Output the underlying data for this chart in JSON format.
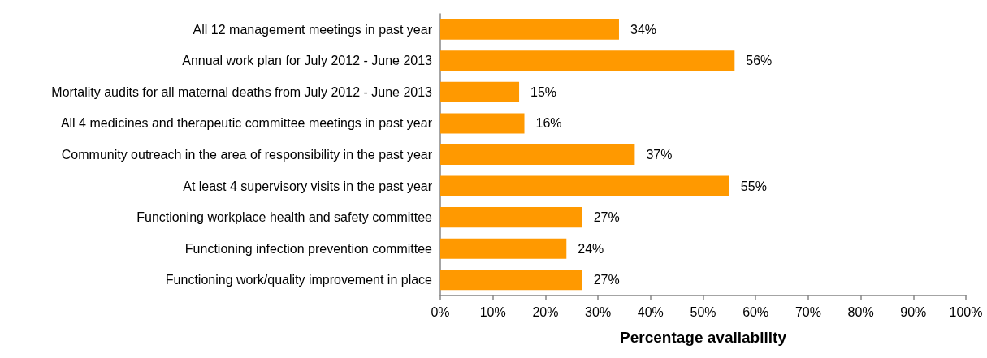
{
  "chart_data": {
    "type": "bar",
    "orientation": "horizontal",
    "xlabel": "Percentage availability",
    "categories": [
      "All 12 management meetings in past year",
      "Annual work plan for July 2012 - June 2013",
      "Mortality audits for all maternal deaths from July 2012 - June 2013",
      "All 4 medicines and therapeutic committee meetings in past year",
      "Community outreach in the area of responsibility in the past year",
      "At least 4 supervisory visits in the past year",
      "Functioning workplace health and safety committee",
      "Functioning infection prevention committee",
      "Functioning work/quality improvement in place"
    ],
    "values": [
      34,
      56,
      15,
      16,
      37,
      55,
      27,
      24,
      27
    ],
    "value_labels": [
      "34%",
      "56%",
      "15%",
      "16%",
      "37%",
      "55%",
      "27%",
      "24%",
      "27%"
    ],
    "color": "#ff9900",
    "xlim": [
      0,
      100
    ],
    "xticks": [
      {
        "value": 0,
        "label": "0%"
      },
      {
        "value": 10,
        "label": "10%"
      },
      {
        "value": 20,
        "label": "20%"
      },
      {
        "value": 30,
        "label": "30%"
      },
      {
        "value": 40,
        "label": "40%"
      },
      {
        "value": 50,
        "label": "50%"
      },
      {
        "value": 60,
        "label": "60%"
      },
      {
        "value": 70,
        "label": "70%"
      },
      {
        "value": 80,
        "label": "80%"
      },
      {
        "value": 90,
        "label": "90%"
      },
      {
        "value": 100,
        "label": "100%"
      }
    ]
  }
}
